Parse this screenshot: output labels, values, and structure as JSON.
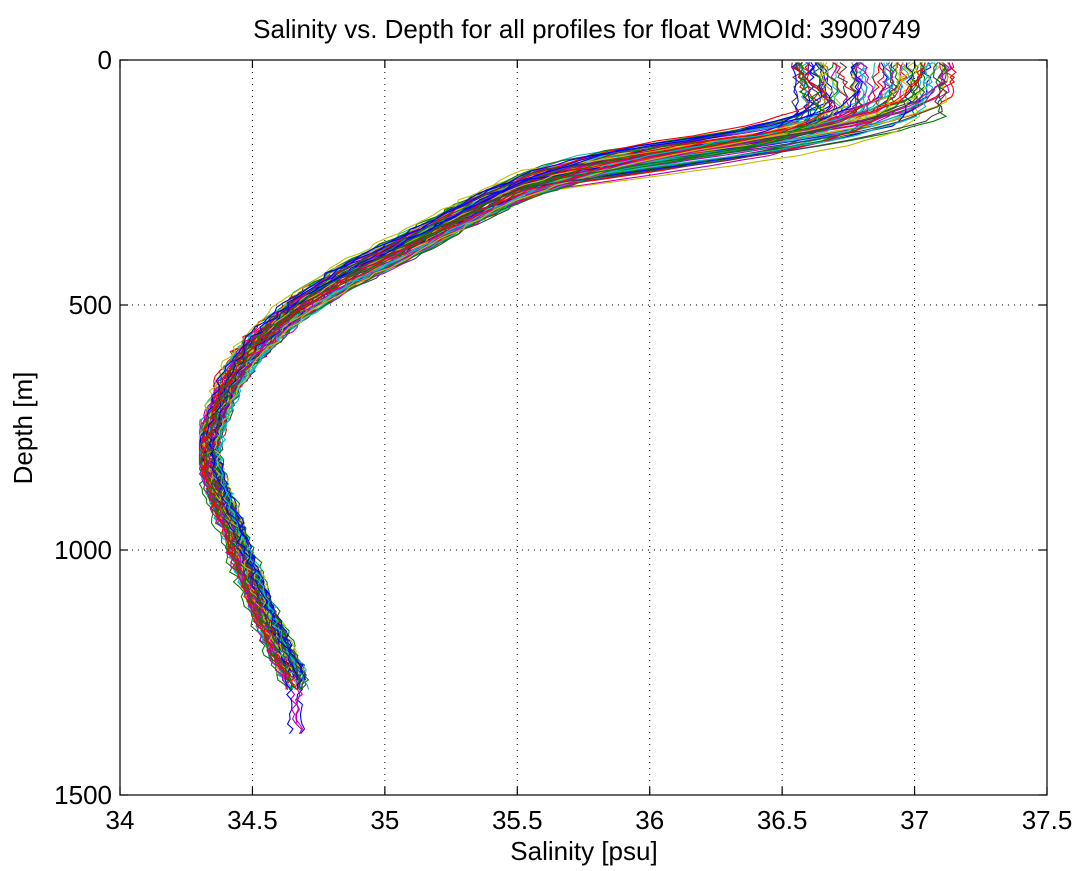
{
  "chart_data": {
    "type": "line",
    "title": "Salinity vs. Depth for all profiles for float WMOId: 3900749",
    "xlabel": "Salinity [psu]",
    "ylabel": "Depth [m]",
    "xlim": [
      34,
      37.5
    ],
    "ylim": [
      0,
      1500
    ],
    "y_reversed": true,
    "grid": true,
    "x_ticks": [
      34,
      34.5,
      35,
      35.5,
      36,
      36.5,
      37,
      37.5
    ],
    "x_tick_labels": [
      "34",
      "34.5",
      "35",
      "35.5",
      "36",
      "36.5",
      "37",
      "37.5"
    ],
    "y_ticks": [
      0,
      500,
      1000,
      1500
    ],
    "y_tick_labels": [
      "0",
      "500",
      "1000",
      "1500"
    ],
    "colors": [
      "#0000ff",
      "#008000",
      "#ff0000",
      "#00bfbf",
      "#bf00bf",
      "#bfbf00",
      "#404040"
    ],
    "mean_profile": {
      "depth": [
        5,
        40,
        80,
        120,
        160,
        200,
        250,
        300,
        350,
        400,
        450,
        500,
        550,
        600,
        650,
        700,
        750,
        800,
        850,
        900,
        950,
        1000,
        1100,
        1200,
        1260
      ],
      "salinity": [
        36.9,
        36.9,
        36.82,
        36.55,
        36.2,
        35.85,
        35.55,
        35.35,
        35.18,
        35.0,
        34.82,
        34.68,
        34.57,
        34.48,
        34.42,
        34.38,
        34.35,
        34.33,
        34.35,
        34.38,
        34.42,
        34.45,
        34.52,
        34.6,
        34.66
      ]
    },
    "profile_count": 80
  }
}
